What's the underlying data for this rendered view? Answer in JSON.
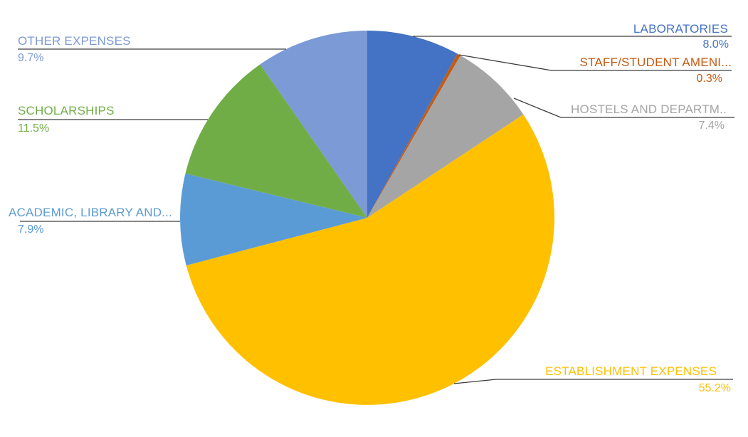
{
  "chart_data": {
    "type": "pie",
    "legend": "none",
    "label_style": "category-name-and-percentage-with-leader-lines",
    "start_angle_deg": 0,
    "direction": "clockwise",
    "leader_line_color": "#3d3d3d",
    "background_color": "#ffffff",
    "categories": [
      "LABORATORIES",
      "STAFF/STUDENT AMENI...",
      "HOSTELS AND DEPARTM..",
      "ESTABLISHMENT EXPENSES",
      "ACADEMIC, LIBRARY AND...",
      "SCHOLARSHIPS",
      "OTHER EXPENSES"
    ],
    "values": [
      8.0,
      0.3,
      7.4,
      55.2,
      7.9,
      11.5,
      9.7
    ],
    "slices": [
      {
        "label": "LABORATORIES",
        "pct": "8.0%",
        "value": 8.0,
        "color": "#4472C4"
      },
      {
        "label": "STAFF/STUDENT AMENI...",
        "pct": "0.3%",
        "value": 0.3,
        "color": "#C55A11"
      },
      {
        "label": "HOSTELS AND DEPARTM..",
        "pct": "7.4%",
        "value": 7.4,
        "color": "#A5A5A5"
      },
      {
        "label": "ESTABLISHMENT EXPENSES",
        "pct": "55.2%",
        "value": 55.2,
        "color": "#FFC000"
      },
      {
        "label": "ACADEMIC, LIBRARY AND...",
        "pct": "7.9%",
        "value": 7.9,
        "color": "#5B9BD5"
      },
      {
        "label": "SCHOLARSHIPS",
        "pct": "11.5%",
        "value": 11.5,
        "color": "#70AD47"
      },
      {
        "label": "OTHER EXPENSES",
        "pct": "9.7%",
        "value": 9.7,
        "color": "#7C9AD6"
      }
    ]
  }
}
